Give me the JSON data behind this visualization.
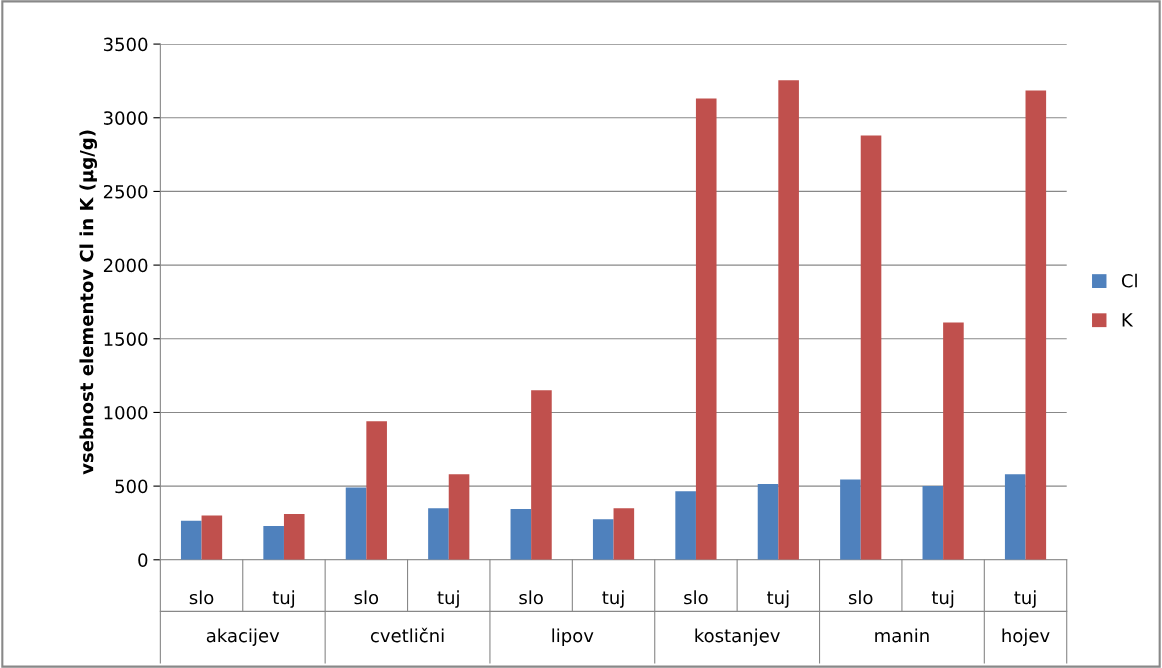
{
  "chart_data": {
    "type": "bar",
    "ylabel": "vsebnost elementov Cl in K (µg/g)",
    "categories": [
      "slo",
      "tuj",
      "slo",
      "tuj",
      "slo",
      "tuj",
      "slo",
      "tuj",
      "slo",
      "tuj",
      "tuj"
    ],
    "series": [
      {
        "name": "Cl",
        "color": "#4f81bd",
        "values": [
          265,
          230,
          490,
          350,
          345,
          275,
          465,
          515,
          545,
          500,
          580
        ]
      },
      {
        "name": "K",
        "color": "#c0504d",
        "values": [
          300,
          310,
          940,
          580,
          1150,
          350,
          3130,
          3255,
          2880,
          1610,
          3185
        ]
      }
    ],
    "annotations": [
      "akacijev",
      "cvetlični",
      "lipov",
      "kostanjev",
      "manin",
      "hojev"
    ],
    "ylim": [
      0,
      3500
    ],
    "yticks": [
      0,
      500,
      1000,
      1500,
      2000,
      2500,
      3000,
      3500
    ],
    "grid": "y",
    "legend": "right"
  }
}
